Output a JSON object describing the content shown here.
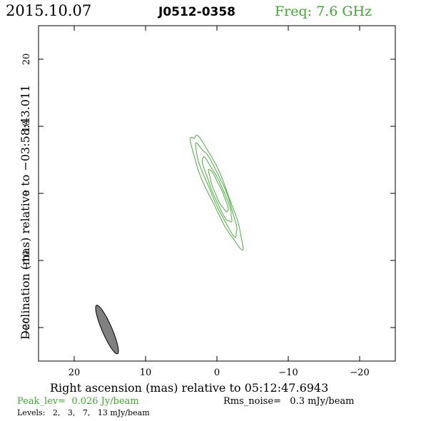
{
  "header": {
    "date": "2015.10.07",
    "source": "J0512-0358",
    "frequency": "Freq: 7.6 GHz"
  },
  "footer": {
    "peak_level": "Peak_lev=  0.026 Jy/beam",
    "rms_noise": "Rms_noise=   0.3 mJy/beam",
    "levels": "Levels:   2,   3,   7,   13 mJy/beam"
  },
  "colors": {
    "frequency_text": "#3daa2e",
    "contour": "#4caf3f",
    "beam_fill": "#808080",
    "axis": "#000000"
  },
  "chart_data": {
    "type": "contour",
    "xlabel": "Right ascension (mas) relative to 05:12:47.6943",
    "ylabel": "Declination (mas) relative to −03:58:43.011",
    "xlim": [
      25,
      -25
    ],
    "ylim": [
      -25,
      25
    ],
    "x_ticks": [
      20,
      10,
      0,
      -10,
      -20
    ],
    "y_ticks": [
      20,
      10,
      0,
      -10,
      -20
    ],
    "x_tick_labels": [
      "20",
      "10",
      "0",
      "−10",
      "−20"
    ],
    "y_tick_labels": [
      "20",
      "10",
      "0",
      "−10",
      "−20"
    ],
    "contour_levels_mJy": [
      2,
      3,
      7,
      13
    ],
    "contours": [
      {
        "level": 2,
        "center": [
          0.1,
          0.7
        ],
        "major": 9.0,
        "minor": 1.3,
        "angle_deg": 22
      },
      {
        "level": 3,
        "center": [
          0.0,
          0.6
        ],
        "major": 7.3,
        "minor": 1.0,
        "angle_deg": 22
      },
      {
        "level": 7,
        "center": [
          -0.1,
          0.4
        ],
        "major": 5.2,
        "minor": 0.75,
        "angle_deg": 22
      },
      {
        "level": 13,
        "center": [
          -0.2,
          0.3
        ],
        "major": 3.4,
        "minor": 0.5,
        "angle_deg": 22
      }
    ],
    "beam": {
      "center": [
        15.4,
        -20.3
      ],
      "major": 3.9,
      "minor": 0.7,
      "angle_deg": 22
    }
  }
}
